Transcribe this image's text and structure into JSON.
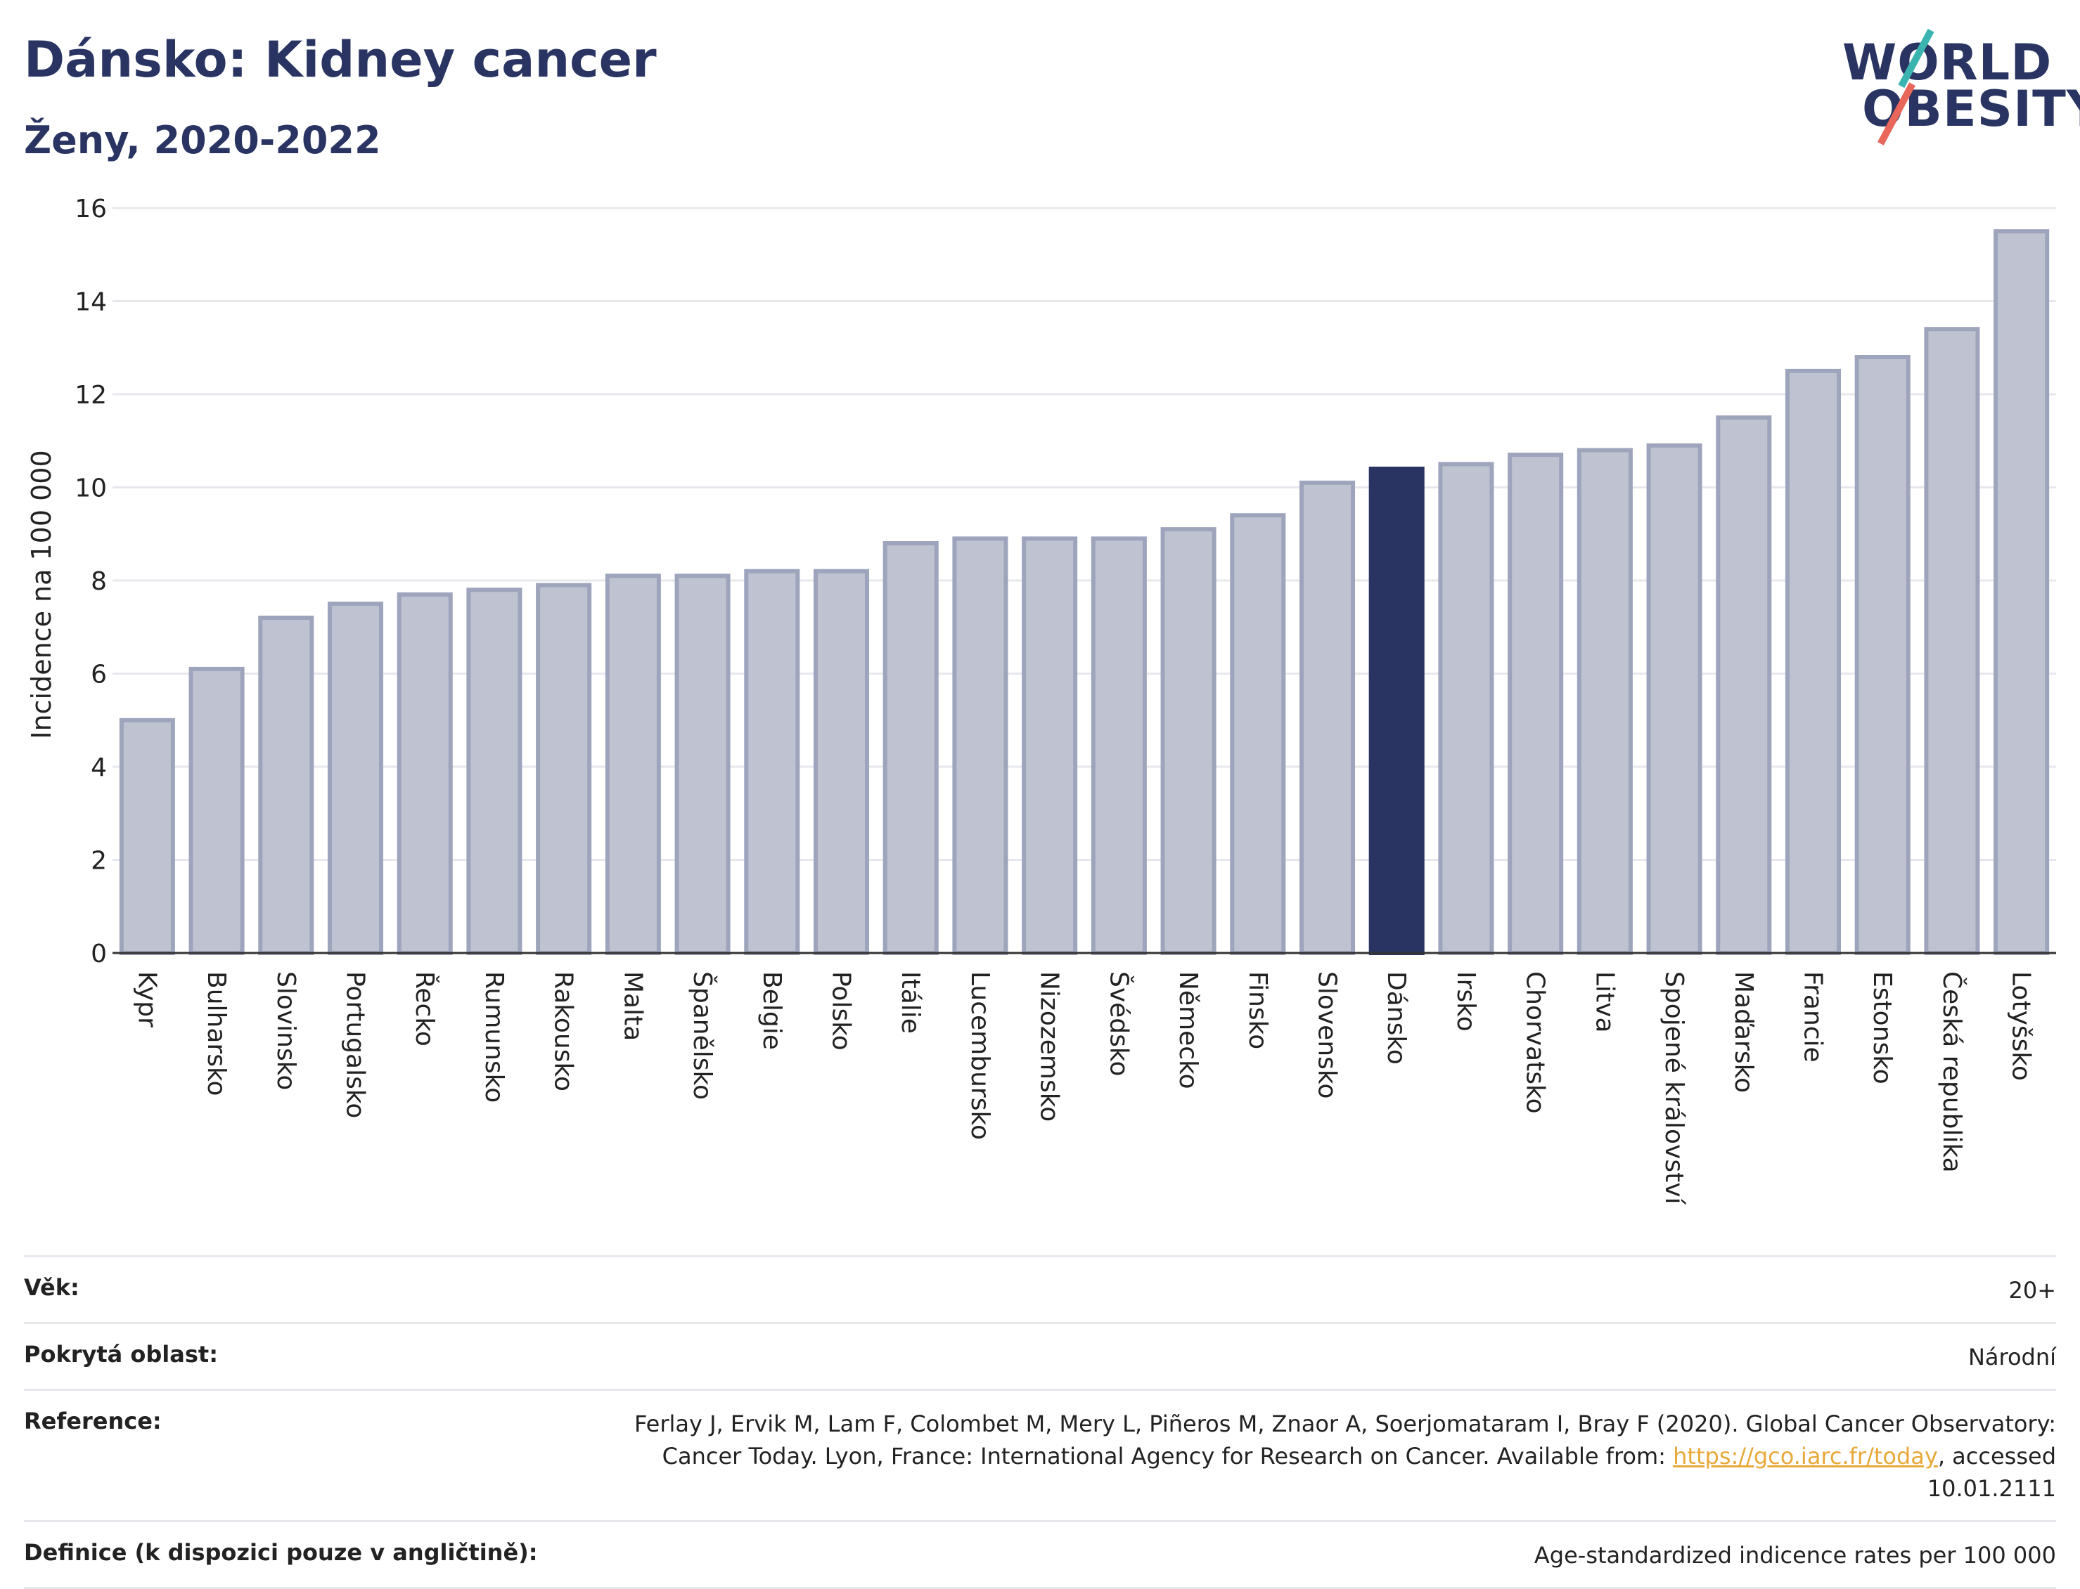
{
  "header": {
    "title": "Dánsko: Kidney cancer",
    "subtitle": "Ženy, 2020-2022"
  },
  "logo": {
    "line1": "WORLD",
    "line2": "OBESITY"
  },
  "colors": {
    "bar": "#bfc3d1",
    "bar_border": "#9ea4bc",
    "highlight": "#2a3462",
    "grid": "#e6e8ee",
    "link": "#e8a93a"
  },
  "chart_data": {
    "type": "bar",
    "title": "Dánsko: Kidney cancer",
    "subtitle": "Ženy, 2020-2022",
    "ylabel": "Incidence na 100 000",
    "ylim": [
      0,
      16
    ],
    "yticks": [
      0,
      2,
      4,
      6,
      8,
      10,
      12,
      14,
      16
    ],
    "grid": true,
    "highlight": "Dánsko",
    "categories": [
      "Kypr",
      "Bulharsko",
      "Slovinsko",
      "Portugalsko",
      "Řecko",
      "Rumunsko",
      "Rakousko",
      "Malta",
      "Španělsko",
      "Belgie",
      "Polsko",
      "Itálie",
      "Lucembursko",
      "Nizozemsko",
      "Švédsko",
      "Německo",
      "Finsko",
      "Slovensko",
      "Dánsko",
      "Irsko",
      "Chorvatsko",
      "Litva",
      "Spojené království",
      "Maďarsko",
      "Francie",
      "Estonsko",
      "Česká republika",
      "Lotyšsko"
    ],
    "values": [
      5.0,
      6.1,
      7.2,
      7.5,
      7.7,
      7.8,
      7.9,
      8.1,
      8.1,
      8.2,
      8.2,
      8.8,
      8.9,
      8.9,
      8.9,
      9.1,
      9.4,
      10.1,
      10.4,
      10.5,
      10.7,
      10.8,
      10.9,
      11.5,
      12.5,
      12.8,
      13.4,
      15.5
    ]
  },
  "meta": {
    "age_label": "Věk:",
    "age_value": "20+",
    "area_label": "Pokrytá oblast:",
    "area_value": "Národní",
    "ref_label": "Reference:",
    "ref_text_1": "Ferlay J, Ervik M, Lam F, Colombet M, Mery L, Piñeros M, Znaor A, Soerjomataram I, Bray F (2020). Global Cancer Observatory: Cancer Today. Lyon, France: International Agency for Research on Cancer. Available from: ",
    "ref_link": "https://gco.iarc.fr/today",
    "ref_text_2": ", accessed 10.01.2111",
    "def_label": "Definice (k dispozici pouze v angličtině):",
    "def_value": "Age-standardized indicence rates per 100 000"
  }
}
